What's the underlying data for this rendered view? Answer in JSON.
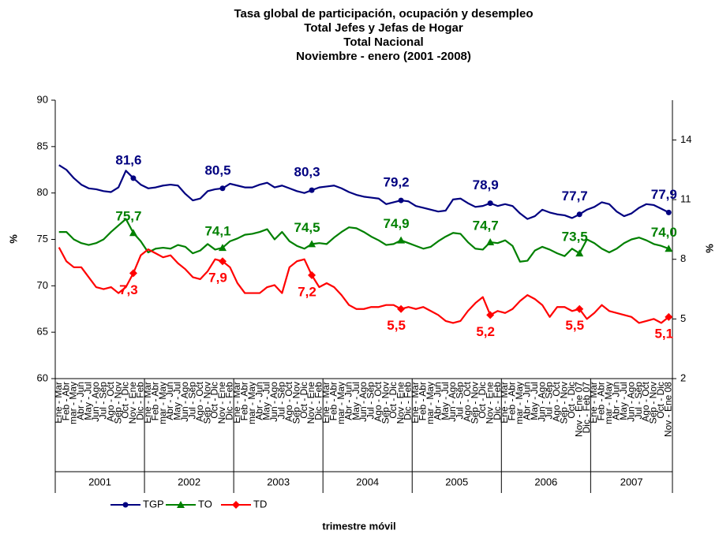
{
  "chart_data": {
    "type": "line",
    "title": [
      "Tasa global de participación, ocupación y desempleo",
      "Total Jefes y Jefas de Hogar",
      "Total Nacional",
      "Noviembre  - enero (2001 -2008)"
    ],
    "ylabel": "%",
    "y2label": "%",
    "xlabel": "trimestre móvil",
    "ylim": [
      60,
      90
    ],
    "yticks": [
      60,
      65,
      70,
      75,
      80,
      85,
      90
    ],
    "y2lim": [
      2,
      16
    ],
    "y2ticks": [
      2,
      5,
      8,
      11,
      14
    ],
    "year_groups": [
      "2001",
      "2002",
      "2003",
      "2004",
      "2005",
      "2006",
      "2007"
    ],
    "categories": [
      "Ene - Mar",
      "Feb - Abr",
      "mar - May",
      "Abr - Jun",
      "May - Jul",
      "Jun - Ago",
      "Jul - Sep",
      "Ago - Oct",
      "Sep - Nov",
      "Oct - Dic",
      "Nov - Ene",
      "Dic - Feb",
      "Ene - Mar",
      "Feb - Abr",
      "mar - May",
      "Abr - Jun",
      "May - Jul",
      "Jun - Ago",
      "Jul - Sep",
      "Ago - Oct",
      "Sep - Nov",
      "Oct - Dic",
      "Nov - Ene",
      "Dic - Feb",
      "Ene - Mar",
      "Feb - Abr",
      "mar - May",
      "Abr - Jun",
      "May - Jul",
      "Jun - Ago",
      "Jul - Sep",
      "Ago - Oct",
      "Sep - Nov",
      "Oct - Dic",
      "Nov - Ene",
      "Dic - Feb",
      "Ene - Mar",
      "Feb - Abr",
      "mar - May",
      "Abr - Jun",
      "May - Jul",
      "Jun - Ago",
      "Jul - Sep",
      "Ago - Oct",
      "Sep - Nov",
      "Oct - Dic",
      "Nov - Ene",
      "Dic - Feb",
      "Ene - Mar",
      "Feb - Abr",
      "mar - May",
      "Abr - Jun",
      "May - Jul",
      "Jun - Ago",
      "Jul - Sep",
      "Ago - Oct",
      "Sep - Nov",
      "Oct - Dic",
      "Nov - Ene",
      "Dic - Feb",
      "Ene - Mar",
      "Feb - Abr",
      "mar - May",
      "Abr - Jun",
      "May - Jul",
      "Jun - Ago",
      "Jul - Sep",
      "Ago - Oct",
      "Sep - Nov",
      "Oct - Dic",
      "Nov - Ene 07",
      "Dic - Feb 07",
      "Ene - Mar",
      "Feb - Abr",
      "mar - May",
      "Abr - Jun",
      "May - Jul",
      "Jun - Ago",
      "Jul - Sep",
      "Ago - Oct",
      "Sep - Nov",
      "Oct - Dic",
      "Nov - Ene 08"
    ],
    "series": [
      {
        "name": "TGP",
        "color": "#000080",
        "marker": "circle",
        "values": [
          83.0,
          82.5,
          81.6,
          80.9,
          80.5,
          80.4,
          80.2,
          80.1,
          80.6,
          82.4,
          81.6,
          80.9,
          80.5,
          80.6,
          80.8,
          80.9,
          80.8,
          79.9,
          79.2,
          79.4,
          80.2,
          80.4,
          80.5,
          81.0,
          80.8,
          80.6,
          80.6,
          80.9,
          81.1,
          80.6,
          80.8,
          80.5,
          80.2,
          80.0,
          80.3,
          80.6,
          80.7,
          80.8,
          80.5,
          80.1,
          79.8,
          79.6,
          79.5,
          79.4,
          78.8,
          79.0,
          79.2,
          79.1,
          78.6,
          78.4,
          78.2,
          78.0,
          78.1,
          79.3,
          79.4,
          78.9,
          78.5,
          78.6,
          78.9,
          78.6,
          78.8,
          78.6,
          77.8,
          77.2,
          77.5,
          78.2,
          77.9,
          77.7,
          77.6,
          77.3,
          77.7,
          78.2,
          78.5,
          79.0,
          78.8,
          78.0,
          77.5,
          77.8,
          78.4,
          78.8,
          78.7,
          78.3,
          77.9
        ],
        "value_labels": [
          null,
          null,
          null,
          null,
          null,
          null,
          null,
          null,
          null,
          null,
          "81,6",
          null,
          null,
          null,
          null,
          null,
          null,
          null,
          null,
          null,
          null,
          null,
          "80,5",
          null,
          null,
          null,
          null,
          null,
          null,
          null,
          null,
          null,
          null,
          null,
          "80,3",
          null,
          null,
          null,
          null,
          null,
          null,
          null,
          null,
          null,
          null,
          null,
          "79,2",
          null,
          null,
          null,
          null,
          null,
          null,
          null,
          null,
          null,
          null,
          null,
          "78,9",
          null,
          null,
          null,
          null,
          null,
          null,
          null,
          null,
          null,
          null,
          null,
          "77,7",
          null,
          null,
          null,
          null,
          null,
          null,
          null,
          null,
          null,
          null,
          null,
          "77,9"
        ]
      },
      {
        "name": "TO",
        "color": "#008000",
        "marker": "triangle",
        "values": [
          75.8,
          75.8,
          75.0,
          74.6,
          74.4,
          74.6,
          75.0,
          75.8,
          76.5,
          77.2,
          75.7,
          74.8,
          73.6,
          74.0,
          74.1,
          74.0,
          74.4,
          74.2,
          73.5,
          73.8,
          74.5,
          73.9,
          74.1,
          74.8,
          75.1,
          75.5,
          75.6,
          75.8,
          76.1,
          75.0,
          75.8,
          74.8,
          74.3,
          74.0,
          74.5,
          74.6,
          74.5,
          75.2,
          75.8,
          76.3,
          76.2,
          75.8,
          75.3,
          74.9,
          74.4,
          74.5,
          74.9,
          74.6,
          74.3,
          74.0,
          74.2,
          74.8,
          75.3,
          75.7,
          75.6,
          74.7,
          74.0,
          73.9,
          74.7,
          74.6,
          74.9,
          74.3,
          72.6,
          72.7,
          73.8,
          74.2,
          73.9,
          73.5,
          73.2,
          74.0,
          73.5,
          75.0,
          74.6,
          74.0,
          73.6,
          74.0,
          74.6,
          75.0,
          75.2,
          74.9,
          74.5,
          74.3,
          74.0
        ],
        "value_labels": [
          null,
          null,
          null,
          null,
          null,
          null,
          null,
          null,
          null,
          null,
          "75,7",
          null,
          null,
          null,
          null,
          null,
          null,
          null,
          null,
          null,
          null,
          null,
          "74,1",
          null,
          null,
          null,
          null,
          null,
          null,
          null,
          null,
          null,
          null,
          null,
          "74,5",
          null,
          null,
          null,
          null,
          null,
          null,
          null,
          null,
          null,
          null,
          null,
          "74,9",
          null,
          null,
          null,
          null,
          null,
          null,
          null,
          null,
          null,
          null,
          null,
          "74,7",
          null,
          null,
          null,
          null,
          null,
          null,
          null,
          null,
          null,
          null,
          null,
          "73,5",
          null,
          null,
          null,
          null,
          null,
          null,
          null,
          null,
          null,
          null,
          null,
          "74,0"
        ]
      },
      {
        "name": "TD",
        "color": "#ff0000",
        "marker": "diamond",
        "axis": "y2",
        "values": [
          8.6,
          7.9,
          7.6,
          7.6,
          7.1,
          6.6,
          6.5,
          6.6,
          6.3,
          6.6,
          7.3,
          8.2,
          8.5,
          8.3,
          8.1,
          8.2,
          7.8,
          7.5,
          7.1,
          7.0,
          7.4,
          8.0,
          7.9,
          7.6,
          6.8,
          6.3,
          6.3,
          6.3,
          6.6,
          6.7,
          6.3,
          7.6,
          7.9,
          8.0,
          7.2,
          6.6,
          6.8,
          6.6,
          6.2,
          5.7,
          5.5,
          5.5,
          5.6,
          5.6,
          5.7,
          5.7,
          5.5,
          5.6,
          5.5,
          5.6,
          5.4,
          5.2,
          4.9,
          4.8,
          4.9,
          5.4,
          5.8,
          6.1,
          5.2,
          5.4,
          5.3,
          5.5,
          5.9,
          6.2,
          6.0,
          5.7,
          5.1,
          5.6,
          5.6,
          5.4,
          5.5,
          5.0,
          5.3,
          5.7,
          5.4,
          5.3,
          5.2,
          5.1,
          4.8,
          4.9,
          5.0,
          4.8,
          5.1
        ],
        "value_labels": [
          null,
          null,
          null,
          null,
          null,
          null,
          null,
          null,
          null,
          null,
          "7,3",
          null,
          null,
          null,
          null,
          null,
          null,
          null,
          null,
          null,
          null,
          null,
          "7,9",
          null,
          null,
          null,
          null,
          null,
          null,
          null,
          null,
          null,
          null,
          null,
          "7,2",
          null,
          null,
          null,
          null,
          null,
          null,
          null,
          null,
          null,
          null,
          null,
          "5,5",
          null,
          null,
          null,
          null,
          null,
          null,
          null,
          null,
          null,
          null,
          null,
          "5,2",
          null,
          null,
          null,
          null,
          null,
          null,
          null,
          null,
          null,
          null,
          null,
          "5,5",
          null,
          null,
          null,
          null,
          null,
          null,
          null,
          null,
          null,
          null,
          null,
          "5,1"
        ]
      }
    ]
  }
}
